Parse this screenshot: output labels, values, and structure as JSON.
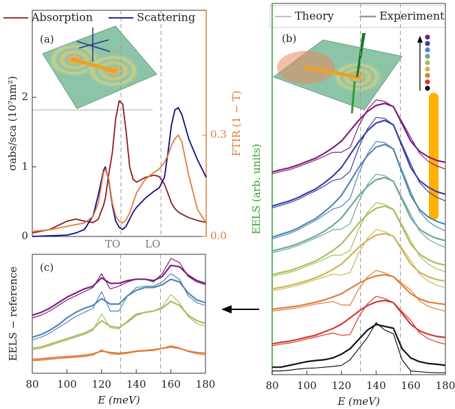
{
  "chart_data": [
    {
      "type": "line",
      "panel_label": "(a)",
      "ylabel": "σabs/sca (10⁷nm²)",
      "y2label": "FTIR (1 − T)",
      "y2color": "#e07b39",
      "legend": "top",
      "xlim": [
        80,
        180
      ],
      "ylim": [
        0,
        3.25
      ],
      "yticks": [
        0,
        1,
        2
      ],
      "y2lim": [
        0,
        0.67
      ],
      "y2ticks": [
        {
          "value": 0,
          "label": "0.0"
        },
        0.3
      ],
      "x": [
        80,
        90,
        100,
        105,
        110,
        115,
        118,
        121,
        122,
        124,
        126,
        128,
        130,
        132,
        134,
        136,
        138,
        140,
        145,
        150,
        153,
        156,
        158,
        160,
        162,
        164,
        166,
        170,
        175,
        180
      ],
      "series": [
        {
          "name": "Absorption",
          "color": "#8b1a1a",
          "width": 1.8,
          "values": [
            0.05,
            0.1,
            0.22,
            0.25,
            0.22,
            0.2,
            0.25,
            0.45,
            0.55,
            0.9,
            1.2,
            1.7,
            1.95,
            1.9,
            1.5,
            1.0,
            0.82,
            0.78,
            0.85,
            0.88,
            0.86,
            0.75,
            0.62,
            0.48,
            0.4,
            0.35,
            0.32,
            0.27,
            0.23,
            0.2
          ]
        },
        {
          "name": "Scattering",
          "color": "#0a0a8c",
          "width": 1.8,
          "values": [
            0,
            0.01,
            0.02,
            0.05,
            0.1,
            0.3,
            0.6,
            0.95,
            1.0,
            0.8,
            0.45,
            0.22,
            0.13,
            0.1,
            0.15,
            0.25,
            0.35,
            0.42,
            0.55,
            0.65,
            0.7,
            0.85,
            1.2,
            1.6,
            1.82,
            1.85,
            1.75,
            1.4,
            1.1,
            0.85
          ]
        },
        {
          "color": "#e07b39",
          "axis": "y2",
          "width": 1.8,
          "values": [
            0.015,
            0.02,
            0.03,
            0.035,
            0.04,
            0.06,
            0.1,
            0.19,
            0.2,
            0.17,
            0.1,
            0.06,
            0.045,
            0.04,
            0.05,
            0.07,
            0.1,
            0.13,
            0.17,
            0.19,
            0.2,
            0.22,
            0.24,
            0.27,
            0.29,
            0.3,
            0.28,
            0.18,
            0.08,
            0.04
          ]
        }
      ],
      "annotations": [
        {
          "text": "TO",
          "x": 131
        },
        {
          "text": "LO",
          "x": 154
        }
      ]
    },
    {
      "type": "line",
      "panel_label": "(b)",
      "ylabel": "EELS (arb. units)",
      "ylabel_color": "#2e9e2e",
      "xlabel": "E (meV)",
      "legend": {
        "position": "top",
        "entries": [
          {
            "name": "Theory",
            "color": "#999999",
            "width": 1.2
          },
          {
            "name": "Experiment",
            "color": "#999999",
            "width": 2.5
          }
        ]
      },
      "xlim": [
        80,
        180
      ],
      "ylim": [
        0,
        10
      ],
      "xticks": [
        80,
        100,
        120,
        140,
        160,
        180
      ],
      "vlines": [
        131,
        154
      ],
      "x": [
        80,
        85,
        90,
        95,
        100,
        105,
        110,
        115,
        120,
        125,
        130,
        135,
        140,
        145,
        150,
        155,
        160,
        165,
        170,
        175,
        180
      ],
      "series": [
        {
          "color": "#7b1f7e",
          "width": 2.2,
          "values": [
            5.46,
            5.52,
            5.57,
            5.65,
            5.74,
            5.83,
            5.96,
            6.11,
            6.29,
            6.57,
            6.85,
            7.09,
            7.25,
            7.31,
            7.22,
            6.76,
            6.29,
            6.02,
            5.87,
            5.77,
            5.72
          ]
        },
        {
          "color": "#7b1f7e",
          "width": 1.2,
          "values": [
            5.41,
            5.47,
            5.52,
            5.6,
            5.69,
            5.78,
            5.88,
            5.99,
            5.99,
            6.12,
            6.7,
            7.14,
            7.4,
            7.36,
            7.22,
            6.81,
            6.39,
            5.97,
            5.75,
            5.62,
            5.54
          ]
        },
        {
          "color": "#3b3fa8",
          "width": 2.2,
          "values": [
            4.54,
            4.61,
            4.68,
            4.77,
            4.89,
            5.0,
            5.16,
            5.35,
            5.58,
            5.93,
            6.27,
            6.57,
            6.78,
            6.85,
            6.73,
            6.16,
            5.58,
            5.23,
            5.05,
            4.93,
            4.86
          ]
        },
        {
          "color": "#3b3fa8",
          "width": 1.2,
          "values": [
            4.49,
            4.56,
            4.63,
            4.72,
            4.84,
            4.95,
            5.08,
            5.23,
            5.28,
            5.48,
            6.12,
            6.62,
            6.93,
            6.9,
            6.73,
            6.21,
            5.68,
            5.18,
            4.93,
            4.78,
            4.68
          ]
        },
        {
          "color": "#4f86b5",
          "width": 2.2,
          "values": [
            3.7,
            3.78,
            3.85,
            3.95,
            4.08,
            4.2,
            4.38,
            4.58,
            4.83,
            5.2,
            5.58,
            5.9,
            6.13,
            6.2,
            6.08,
            5.45,
            4.83,
            4.45,
            4.25,
            4.13,
            4.05
          ]
        },
        {
          "color": "#4f86b5",
          "width": 1.2,
          "values": [
            3.65,
            3.73,
            3.8,
            3.9,
            4.03,
            4.15,
            4.3,
            4.46,
            4.53,
            4.75,
            5.43,
            5.95,
            6.28,
            6.25,
            6.08,
            5.5,
            4.93,
            4.4,
            4.13,
            3.98,
            3.87
          ]
        },
        {
          "color": "#6aa89a",
          "width": 2.2,
          "values": [
            3.33,
            3.39,
            3.45,
            3.53,
            3.63,
            3.73,
            3.86,
            4.02,
            4.22,
            4.52,
            4.82,
            5.07,
            5.25,
            5.31,
            5.21,
            4.72,
            4.22,
            3.92,
            3.77,
            3.67,
            3.61
          ]
        },
        {
          "color": "#6aa89a",
          "width": 1.2,
          "values": [
            3.28,
            3.34,
            3.4,
            3.48,
            3.58,
            3.68,
            3.78,
            3.9,
            3.92,
            4.07,
            4.67,
            5.12,
            5.4,
            5.36,
            5.21,
            4.77,
            4.32,
            3.87,
            3.65,
            3.52,
            3.43
          ]
        },
        {
          "color": "#a7bf5f",
          "width": 2.2,
          "values": [
            2.69,
            2.75,
            2.8,
            2.88,
            2.97,
            3.06,
            3.19,
            3.34,
            3.52,
            3.8,
            4.08,
            4.32,
            4.48,
            4.54,
            4.45,
            3.99,
            3.52,
            3.25,
            3.1,
            3.0,
            2.95
          ]
        },
        {
          "color": "#a7bf5f",
          "width": 1.2,
          "values": [
            2.64,
            2.7,
            2.75,
            2.83,
            2.92,
            3.01,
            3.11,
            3.22,
            3.22,
            3.35,
            3.93,
            4.37,
            4.63,
            4.59,
            4.45,
            4.04,
            3.62,
            3.2,
            2.98,
            2.85,
            2.77
          ]
        },
        {
          "color": "#cdb457",
          "width": 2.2,
          "values": [
            2.31,
            2.35,
            2.4,
            2.46,
            2.53,
            2.61,
            2.71,
            2.83,
            2.98,
            3.2,
            3.43,
            3.62,
            3.76,
            3.8,
            3.73,
            3.35,
            2.98,
            2.76,
            2.64,
            2.56,
            2.52
          ]
        },
        {
          "color": "#cdb457",
          "width": 1.2,
          "values": [
            2.26,
            2.3,
            2.35,
            2.41,
            2.48,
            2.56,
            2.63,
            2.71,
            2.68,
            2.75,
            3.28,
            3.67,
            3.91,
            3.85,
            3.73,
            3.4,
            3.08,
            2.71,
            2.52,
            2.41,
            2.34
          ]
        },
        {
          "color": "#e07b39",
          "width": 2.2,
          "values": [
            1.76,
            1.79,
            1.82,
            1.85,
            1.9,
            1.95,
            2.01,
            2.09,
            2.18,
            2.32,
            2.46,
            2.58,
            2.66,
            2.69,
            2.64,
            2.41,
            2.18,
            2.04,
            1.96,
            1.92,
            1.89
          ]
        },
        {
          "color": "#e07b39",
          "width": 1.2,
          "values": [
            1.71,
            1.74,
            1.77,
            1.8,
            1.85,
            1.9,
            1.93,
            1.97,
            1.88,
            1.87,
            2.31,
            2.63,
            2.81,
            2.74,
            2.64,
            2.46,
            2.28,
            1.99,
            1.84,
            1.77,
            1.71
          ]
        },
        {
          "color": "#d03a2f",
          "width": 2.2,
          "values": [
            0.83,
            0.87,
            0.9,
            0.95,
            1.01,
            1.06,
            1.15,
            1.24,
            1.36,
            1.53,
            1.71,
            1.86,
            1.96,
            2.0,
            1.94,
            1.65,
            1.36,
            1.18,
            1.09,
            1.03,
            1.0
          ]
        },
        {
          "color": "#d03a2f",
          "width": 1.2,
          "values": [
            0.78,
            0.82,
            0.85,
            0.9,
            0.96,
            1.01,
            1.07,
            1.12,
            1.06,
            1.08,
            1.56,
            1.91,
            2.11,
            2.05,
            1.94,
            1.7,
            1.46,
            1.13,
            0.97,
            0.88,
            0.82
          ]
        },
        {
          "color": "#111111",
          "width": 2.2,
          "values": [
            0.2,
            0.2,
            0.25,
            0.3,
            0.35,
            0.38,
            0.4,
            0.45,
            0.55,
            0.7,
            0.95,
            1.2,
            1.35,
            1.3,
            1.25,
            0.7,
            0.45,
            0.35,
            0.3,
            0.28,
            0.25
          ]
        },
        {
          "color": "#111111",
          "width": 1.2,
          "values": [
            0.1,
            0.1,
            0.12,
            0.15,
            0.17,
            0.18,
            0.2,
            0.22,
            0.25,
            0.4,
            0.7,
            1.0,
            1.4,
            1.2,
            1.1,
            0.4,
            0.1,
            0.08,
            0.06,
            0.05,
            0.05
          ]
        }
      ]
    },
    {
      "type": "line",
      "panel_label": "(c)",
      "ylabel": "EELS − reference",
      "xlabel": "E (meV)",
      "xlim": [
        80,
        180
      ],
      "ylim": [
        -0.3,
        4
      ],
      "xticks": [
        80,
        100,
        120,
        140,
        160,
        180
      ],
      "vlines": [
        131,
        154
      ],
      "x": [
        80,
        85,
        90,
        95,
        100,
        105,
        110,
        115,
        120,
        125,
        130,
        135,
        140,
        145,
        150,
        155,
        160,
        165,
        170,
        175,
        180
      ],
      "series": [
        {
          "color": "#7b1f7e",
          "width": 2.2,
          "values": [
            1.8,
            1.9,
            2.05,
            2.25,
            2.45,
            2.6,
            2.75,
            2.85,
            3.15,
            2.95,
            2.95,
            3.05,
            3.1,
            3.1,
            3.05,
            3.2,
            3.6,
            3.55,
            3.25,
            3.05,
            2.95
          ]
        },
        {
          "color": "#7b1f7e",
          "width": 1.2,
          "values": [
            1.7,
            1.8,
            1.95,
            2.15,
            2.35,
            2.5,
            2.65,
            2.8,
            3.3,
            2.75,
            2.85,
            3.0,
            3.1,
            3.1,
            3.0,
            3.3,
            3.85,
            3.7,
            3.2,
            3.0,
            2.9
          ]
        },
        {
          "color": "#4f86b5",
          "width": 2.2,
          "values": [
            1.0,
            1.1,
            1.25,
            1.45,
            1.7,
            1.9,
            2.05,
            2.15,
            2.4,
            2.2,
            2.2,
            2.5,
            2.7,
            2.8,
            2.8,
            2.9,
            3.1,
            3.0,
            2.6,
            2.35,
            2.25
          ]
        },
        {
          "color": "#4f86b5",
          "width": 1.2,
          "values": [
            0.9,
            1.0,
            1.15,
            1.35,
            1.55,
            1.75,
            1.9,
            2.05,
            2.65,
            1.95,
            1.95,
            2.5,
            2.8,
            2.85,
            2.85,
            3.0,
            3.3,
            3.1,
            2.5,
            2.25,
            2.15
          ]
        },
        {
          "color": "#a7bf5f",
          "width": 2.2,
          "values": [
            0.6,
            0.65,
            0.75,
            0.85,
            0.95,
            1.05,
            1.15,
            1.3,
            1.6,
            1.4,
            1.35,
            1.55,
            1.8,
            1.9,
            1.95,
            2.05,
            2.3,
            2.15,
            1.8,
            1.6,
            1.5
          ]
        },
        {
          "color": "#a7bf5f",
          "width": 1.2,
          "values": [
            0.55,
            0.6,
            0.7,
            0.8,
            0.9,
            1.0,
            1.1,
            1.25,
            1.85,
            1.35,
            1.3,
            1.6,
            1.85,
            1.9,
            1.95,
            2.1,
            2.55,
            2.25,
            1.75,
            1.5,
            1.4
          ]
        },
        {
          "color": "#e07b39",
          "width": 2.2,
          "values": [
            0.2,
            0.22,
            0.25,
            0.28,
            0.3,
            0.32,
            0.35,
            0.4,
            0.5,
            0.45,
            0.42,
            0.45,
            0.5,
            0.52,
            0.55,
            0.6,
            0.65,
            0.6,
            0.5,
            0.45,
            0.42
          ]
        },
        {
          "color": "#e07b39",
          "width": 1.2,
          "values": [
            0.15,
            0.17,
            0.2,
            0.23,
            0.25,
            0.28,
            0.3,
            0.35,
            0.55,
            0.4,
            0.38,
            0.42,
            0.48,
            0.5,
            0.52,
            0.6,
            0.7,
            0.62,
            0.48,
            0.4,
            0.36
          ]
        }
      ]
    }
  ]
}
